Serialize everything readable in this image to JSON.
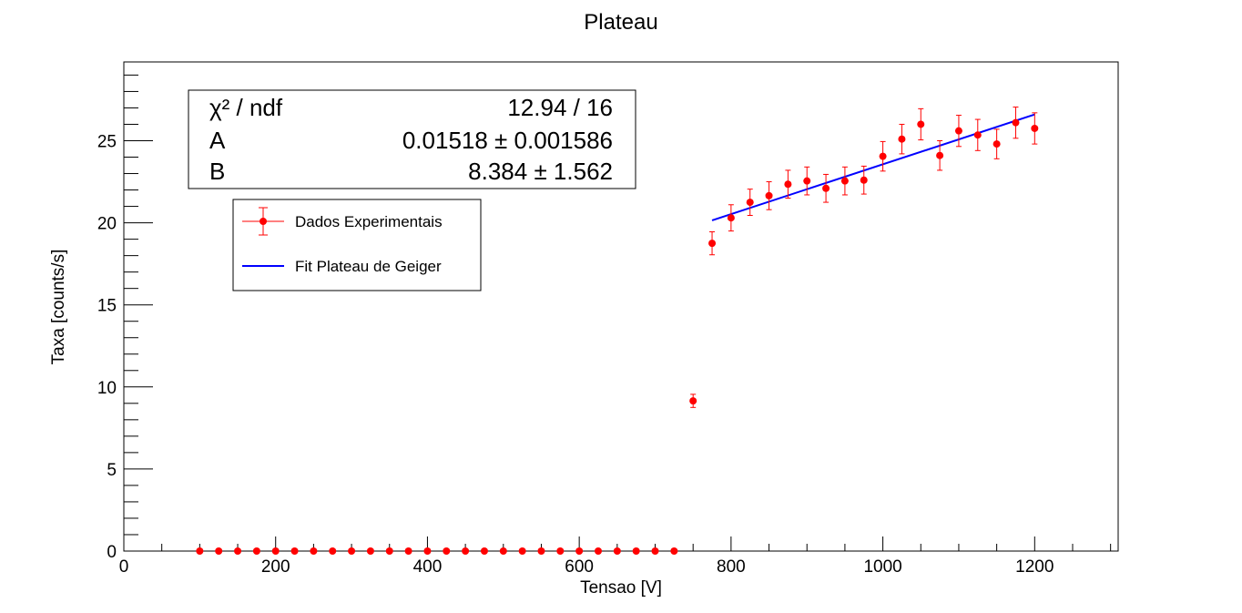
{
  "chart_data": {
    "type": "scatter",
    "title": "Plateau",
    "xlabel": "Tensao [V]",
    "ylabel": "Taxa [counts/s]",
    "xlim": [
      0,
      1310
    ],
    "ylim": [
      0,
      29.8
    ],
    "x_ticks": [
      0,
      200,
      400,
      600,
      800,
      1000,
      1200
    ],
    "y_ticks": [
      0,
      5,
      10,
      15,
      20,
      25
    ],
    "grid": false,
    "series": [
      {
        "name": "Dados Experimentais",
        "color": "#ff0000",
        "marker": "circle",
        "x": [
          100,
          125,
          150,
          175,
          200,
          225,
          250,
          275,
          300,
          325,
          350,
          375,
          400,
          425,
          450,
          475,
          500,
          525,
          550,
          575,
          600,
          625,
          650,
          675,
          700,
          725,
          750,
          775,
          800,
          825,
          850,
          875,
          900,
          925,
          950,
          975,
          1000,
          1025,
          1050,
          1075,
          1100,
          1125,
          1150,
          1175,
          1200
        ],
        "y": [
          0,
          0,
          0,
          0,
          0,
          0,
          0,
          0,
          0,
          0,
          0,
          0,
          0,
          0,
          0,
          0,
          0,
          0,
          0,
          0,
          0,
          0,
          0,
          0,
          0,
          0,
          9.15,
          18.75,
          20.3,
          21.25,
          21.65,
          22.35,
          22.55,
          22.1,
          22.55,
          22.6,
          24.05,
          25.1,
          26,
          24.1,
          25.6,
          25.35,
          24.8,
          26.1,
          25.75
        ],
        "yerr": [
          0,
          0,
          0,
          0,
          0,
          0,
          0,
          0,
          0,
          0,
          0,
          0,
          0,
          0,
          0,
          0,
          0,
          0,
          0,
          0,
          0,
          0,
          0,
          0,
          0,
          0,
          0.4,
          0.7,
          0.8,
          0.8,
          0.85,
          0.85,
          0.85,
          0.85,
          0.85,
          0.85,
          0.9,
          0.9,
          0.95,
          0.9,
          0.95,
          0.95,
          0.9,
          0.95,
          0.95
        ]
      },
      {
        "name": "Fit Plateau de Geiger",
        "color": "#0000ff",
        "type": "line",
        "x": [
          775,
          1200
        ],
        "y": [
          20.148,
          26.6
        ]
      }
    ],
    "legend": {
      "position": "top-left",
      "entries": [
        "Dados Experimentais",
        "Fit Plateau de Geiger"
      ]
    },
    "stats_box": {
      "rows": [
        {
          "label": "χ² / ndf",
          "value": "12.94 / 16"
        },
        {
          "label": "A",
          "value": "0.01518 ± 0.001586"
        },
        {
          "label": "B",
          "value": "8.384 ± 1.562"
        }
      ]
    }
  }
}
